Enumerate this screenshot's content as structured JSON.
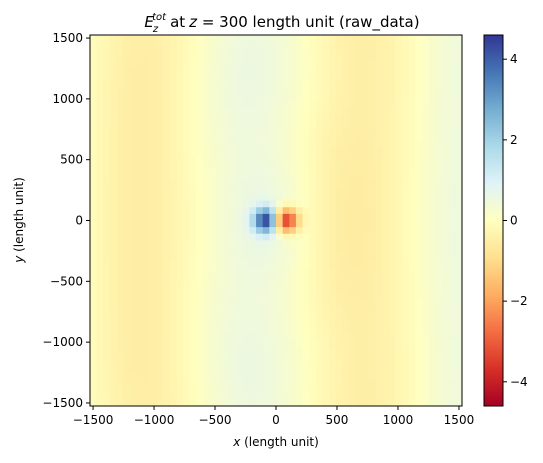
{
  "chart_data": {
    "type": "heatmap",
    "title": {
      "symbol": "E",
      "superscript": "tot",
      "subscript": "z",
      "at": "at",
      "var": "z",
      "rest": " = 300 length unit (raw_data)"
    },
    "xlabel": {
      "var": "x",
      "rest": " (length unit)"
    },
    "ylabel": {
      "var": "y",
      "rest": " (length unit)"
    },
    "xlim": [
      -1525,
      1525
    ],
    "ylim": [
      -1525,
      1525
    ],
    "xticks": [
      -1500,
      -1000,
      -500,
      0,
      500,
      1000,
      1500
    ],
    "xtick_labels": [
      "−1500",
      "−1000",
      "−500",
      "0",
      "500",
      "1000",
      "1500"
    ],
    "yticks": [
      1500,
      1000,
      500,
      0,
      -500,
      -1000,
      -1500
    ],
    "ytick_labels": [
      "1500",
      "1000",
      "500",
      "0",
      "−500",
      "−1000",
      "−1500"
    ],
    "colorbar": {
      "range": [
        -4.6,
        4.6
      ],
      "ticks": [
        4,
        2,
        0,
        -2,
        -4
      ],
      "tick_labels": [
        "4",
        "2",
        "0",
        "−2",
        "−4"
      ],
      "colormap": "RdYlBu",
      "colors": [
        "#a50026",
        "#d73027",
        "#f46d43",
        "#fdae61",
        "#fee090",
        "#ffffbf",
        "#e0f3f8",
        "#abd9e9",
        "#74add1",
        "#4575b4",
        "#313695"
      ]
    },
    "grid": "off",
    "field_features": [
      {
        "name": "negative lobe",
        "x": 90,
        "y": 0,
        "peak": -4.5
      },
      {
        "name": "positive lobe",
        "x": -90,
        "y": 0,
        "peak": 4.5
      },
      {
        "name": "outer negative band",
        "x": -1100,
        "peak": -0.5
      },
      {
        "name": "outer negative band",
        "x": 700,
        "peak": -0.5
      },
      {
        "name": "outer positive band",
        "x": 1200,
        "peak": 0.3
      }
    ]
  }
}
